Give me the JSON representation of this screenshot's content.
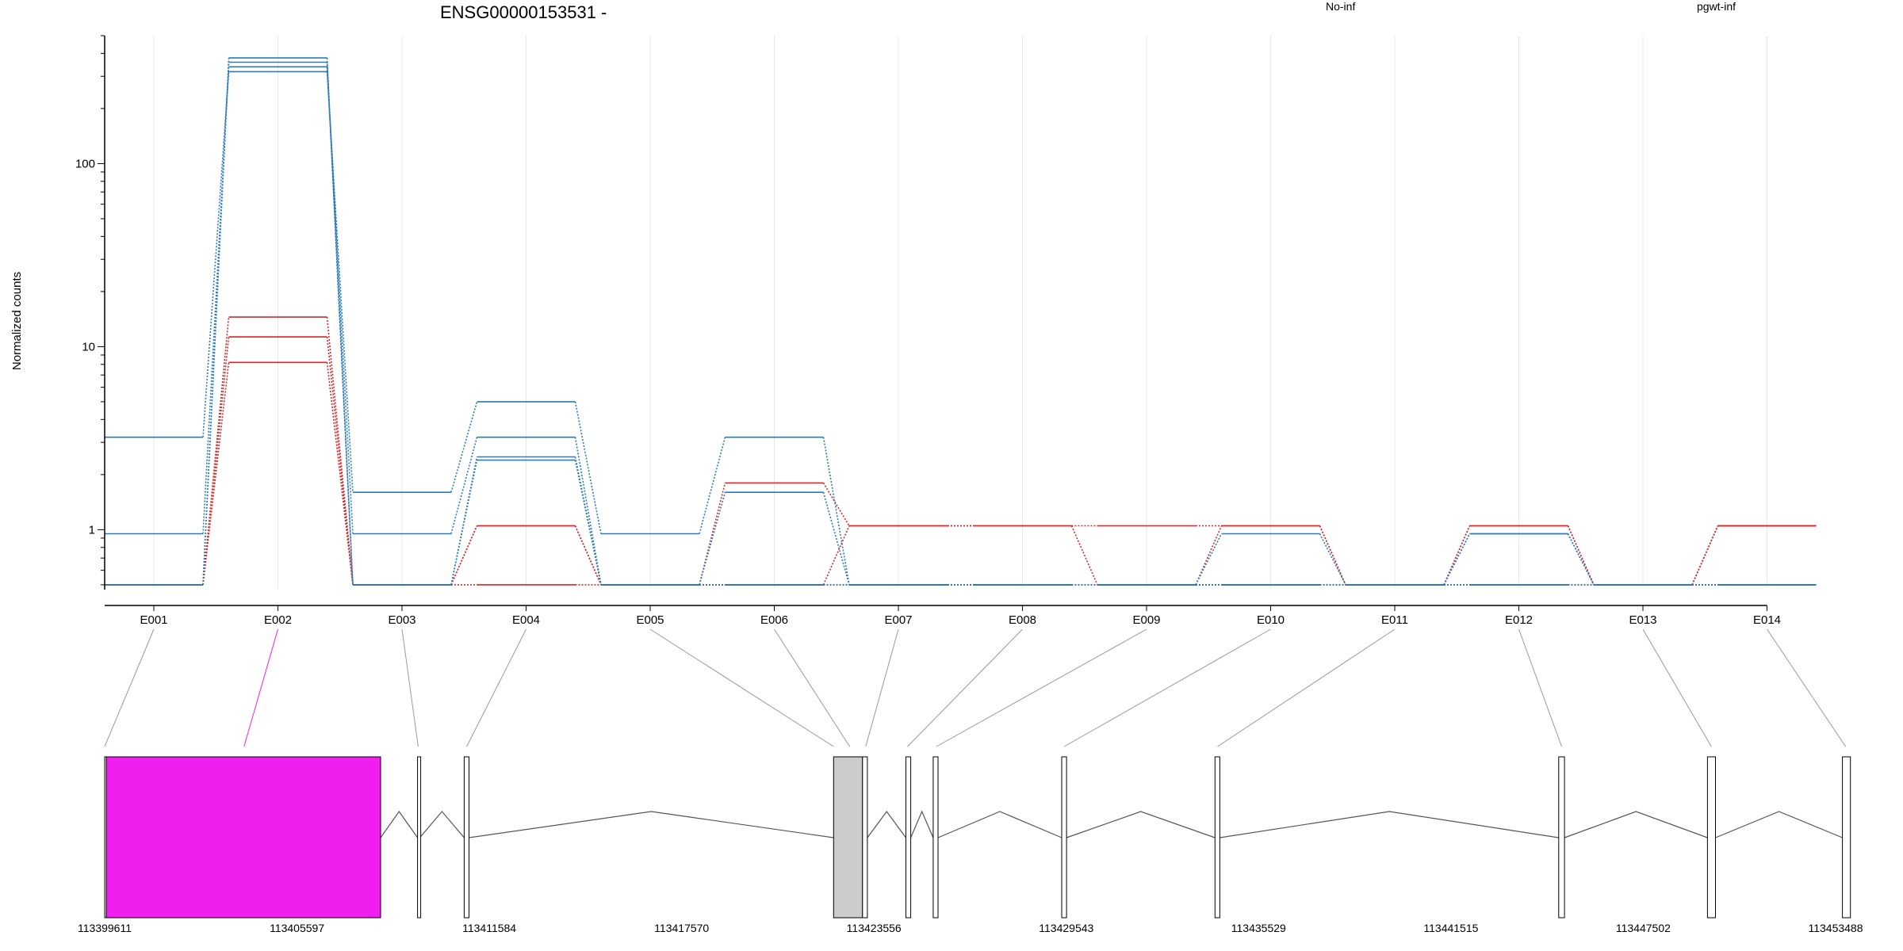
{
  "chart_data": {
    "type": "line",
    "title": "ENSG00000153531 -",
    "xlabel": "",
    "ylabel": "Normalized counts",
    "y_scale": "log",
    "ylim": [
      0.48,
      500
    ],
    "y_ticks": [
      {
        "value": 1,
        "label": "1"
      },
      {
        "value": 10,
        "label": "10"
      },
      {
        "value": 100,
        "label": "100"
      }
    ],
    "grid": "vertical, light",
    "categories": [
      "E001",
      "E002",
      "E003",
      "E004",
      "E005",
      "E006",
      "E007",
      "E008",
      "E009",
      "E010",
      "E011",
      "E012",
      "E013",
      "E014"
    ],
    "legend": [
      {
        "label": "No-inf",
        "color": "#d62728"
      },
      {
        "label": "pgwt-inf",
        "color": "#2b7bba"
      }
    ],
    "series": [
      {
        "group": "No-inf",
        "color": "#d62728",
        "values": [
          0.5,
          8.2,
          0.5,
          1.05,
          0.5,
          1.8,
          1.05,
          1.05,
          1.05,
          1.05,
          0.5,
          1.05,
          0.5,
          1.05
        ]
      },
      {
        "group": "No-inf",
        "color": "#d62728",
        "values": [
          0.5,
          11.3,
          0.5,
          1.05,
          0.5,
          0.5,
          1.05,
          1.05,
          0.5,
          0.5,
          0.5,
          0.5,
          0.5,
          1.05
        ]
      },
      {
        "group": "No-inf",
        "color": "#d62728",
        "values": [
          0.5,
          14.5,
          0.5,
          0.5,
          0.5,
          0.5,
          0.5,
          0.5,
          0.5,
          1.05,
          0.5,
          1.05,
          0.5,
          1.05
        ]
      },
      {
        "group": "pgwt-inf",
        "color": "#2b7bba",
        "values": [
          3.2,
          318,
          1.6,
          5.0,
          0.95,
          3.2,
          0.5,
          0.5,
          0.5,
          0.95,
          0.5,
          0.95,
          0.5,
          0.5
        ]
      },
      {
        "group": "pgwt-inf",
        "color": "#2b7bba",
        "values": [
          0.95,
          338,
          0.95,
          3.2,
          0.5,
          1.6,
          0.5,
          0.5,
          0.5,
          0.5,
          0.5,
          0.5,
          0.5,
          0.5
        ]
      },
      {
        "group": "pgwt-inf",
        "color": "#2b7bba",
        "values": [
          0.5,
          358,
          0.5,
          2.5,
          0.5,
          0.5,
          0.5,
          0.5,
          0.5,
          0.5,
          0.5,
          0.95,
          0.5,
          0.5
        ]
      },
      {
        "group": "pgwt-inf",
        "color": "#2b7bba",
        "values": [
          0.5,
          378,
          0.5,
          2.4,
          0.5,
          0.5,
          0.5,
          0.5,
          0.5,
          0.5,
          0.5,
          0.5,
          0.5,
          0.5
        ]
      }
    ],
    "gene_model": {
      "coordinate_labels": [
        "113399611",
        "113405597",
        "113411584",
        "113417570",
        "113423556",
        "113429543",
        "113435529",
        "113441515",
        "113447502",
        "113453488"
      ],
      "range": [
        113399611,
        113453488
      ],
      "highlight_color": "#f01ff0",
      "exons": [
        {
          "id": "E001",
          "start": 113399611,
          "end": 113399660,
          "fill": "#ffffff"
        },
        {
          "id": "E002",
          "start": 113399660,
          "end": 113408200,
          "fill": "#f01ff0"
        },
        {
          "id": "E003",
          "start": 113409350,
          "end": 113409420,
          "fill": "#ffffff"
        },
        {
          "id": "E004",
          "start": 113410800,
          "end": 113410950,
          "fill": "#ffffff"
        },
        {
          "id": "E005",
          "start": 113422300,
          "end": 113423200,
          "fill": "#cccccc"
        },
        {
          "id": "E006",
          "start": 113423200,
          "end": 113423350,
          "fill": "#ffffff"
        },
        {
          "id": "E007",
          "start": 113424550,
          "end": 113424700,
          "fill": "#ffffff"
        },
        {
          "id": "E008",
          "start": 113425400,
          "end": 113425550,
          "fill": "#ffffff"
        },
        {
          "id": "E010",
          "start": 113429400,
          "end": 113429550,
          "fill": "#ffffff"
        },
        {
          "id": "E011",
          "start": 113434170,
          "end": 113434320,
          "fill": "#ffffff"
        },
        {
          "id": "E012",
          "start": 113444870,
          "end": 113445050,
          "fill": "#ffffff"
        },
        {
          "id": "E013",
          "start": 113449500,
          "end": 113449750,
          "fill": "#ffffff"
        },
        {
          "id": "E014",
          "start": 113453700,
          "end": 113453950,
          "fill": "#ffffff"
        }
      ],
      "connector_targets": [
        113399611,
        113403950,
        113409370,
        113410880,
        113422300,
        113422800,
        113423300,
        113424600,
        113425500,
        113429480,
        113434250,
        113444960,
        113449620,
        113453800
      ]
    }
  }
}
